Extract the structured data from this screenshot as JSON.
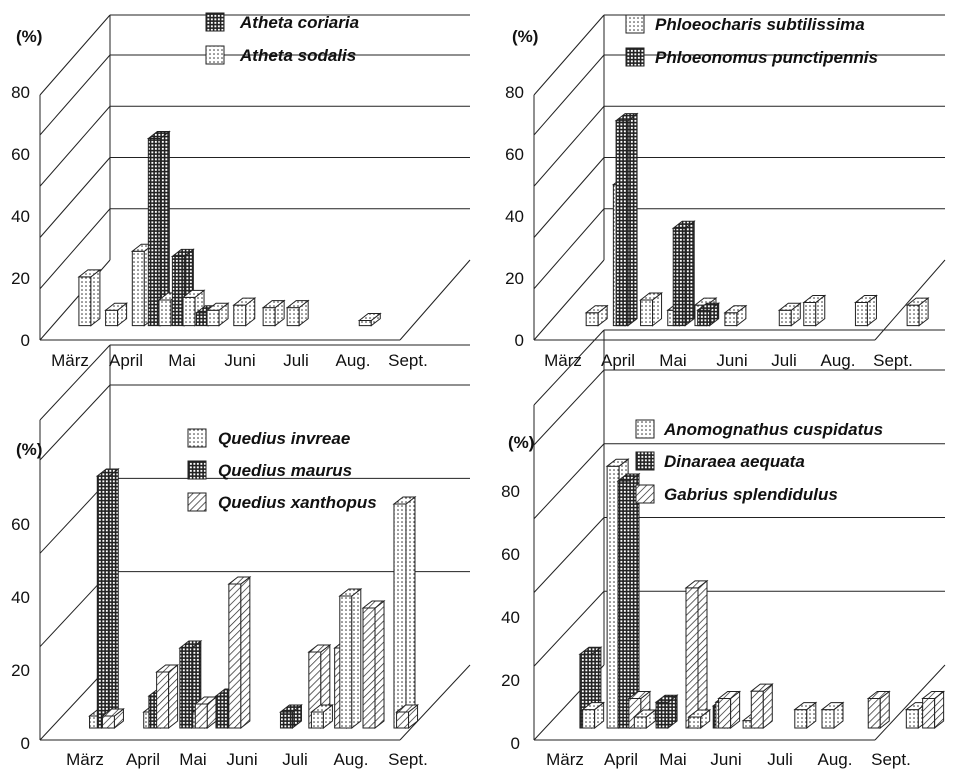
{
  "chart_data": [
    {
      "type": "bar",
      "ylabel": "(%)",
      "ylim": [
        0,
        80
      ],
      "yticks": [
        "0",
        "20",
        "40",
        "60",
        "80"
      ],
      "month_labels": [
        "März",
        "April",
        "Mai",
        "Juni",
        "Juli",
        "Aug.",
        "Sept."
      ],
      "series": [
        {
          "name": "Atheta coriaria",
          "pattern": "grid",
          "points": [
            {
              "x": 5.9,
              "y": 73
            },
            {
              "x": 6.8,
              "y": 27
            },
            {
              "x": 7.7,
              "y": 5
            }
          ]
        },
        {
          "name": "Atheta sodalis",
          "pattern": "dots",
          "points": [
            {
              "x": 3.3,
              "y": 19
            },
            {
              "x": 4.3,
              "y": 6
            },
            {
              "x": 5.3,
              "y": 29
            },
            {
              "x": 6.3,
              "y": 10
            },
            {
              "x": 7.2,
              "y": 11
            },
            {
              "x": 8.1,
              "y": 6
            },
            {
              "x": 9.1,
              "y": 8
            },
            {
              "x": 10.2,
              "y": 7
            },
            {
              "x": 11.1,
              "y": 7
            },
            {
              "x": 13.8,
              "y": 2
            }
          ]
        }
      ]
    },
    {
      "type": "bar",
      "ylabel": "(%)",
      "ylim": [
        0,
        80
      ],
      "yticks": [
        "0",
        "20",
        "40",
        "60",
        "80"
      ],
      "month_labels": [
        "März",
        "April",
        "Mai",
        "Juni",
        "Juli",
        "Aug.",
        "Sept."
      ],
      "series": [
        {
          "name": "Phloeocharis subtilissima",
          "pattern": "dots",
          "points": [
            {
              "x": 3.8,
              "y": 5
            },
            {
              "x": 4.8,
              "y": 55
            },
            {
              "x": 5.8,
              "y": 10
            },
            {
              "x": 6.8,
              "y": 6
            },
            {
              "x": 7.8,
              "y": 8
            },
            {
              "x": 8.9,
              "y": 5
            },
            {
              "x": 10.9,
              "y": 6
            },
            {
              "x": 11.8,
              "y": 9
            },
            {
              "x": 13.7,
              "y": 9
            },
            {
              "x": 15.6,
              "y": 8
            }
          ]
        },
        {
          "name": "Phloeonomus punctipennis",
          "pattern": "grid",
          "points": [
            {
              "x": 4.9,
              "y": 80
            },
            {
              "x": 7.0,
              "y": 38
            },
            {
              "x": 7.9,
              "y": 6
            }
          ]
        }
      ]
    },
    {
      "type": "bar",
      "ylabel": "(%)",
      "ylim": [
        0,
        70
      ],
      "yticks": [
        "0",
        "20",
        "40",
        "60"
      ],
      "month_labels": [
        "März",
        "April",
        "Mai",
        "Juni",
        "Juli",
        "Aug.",
        "Sept."
      ],
      "series": [
        {
          "name": "Quedius invreae",
          "pattern": "dots",
          "points": [
            {
              "x": 3.8,
              "y": 3
            },
            {
              "x": 5.9,
              "y": 4
            },
            {
              "x": 7.8,
              "y": 4
            },
            {
              "x": 12.4,
              "y": 4
            },
            {
              "x": 13.5,
              "y": 33
            },
            {
              "x": 15.6,
              "y": 56
            }
          ]
        },
        {
          "name": "Quedius maurus",
          "pattern": "grid",
          "points": [
            {
              "x": 4.1,
              "y": 63
            },
            {
              "x": 6.1,
              "y": 8
            },
            {
              "x": 7.3,
              "y": 20
            },
            {
              "x": 8.7,
              "y": 8
            },
            {
              "x": 11.2,
              "y": 4
            }
          ]
        },
        {
          "name": "Quedius xanthopus",
          "pattern": "hatch",
          "points": [
            {
              "x": 4.3,
              "y": 3
            },
            {
              "x": 6.4,
              "y": 14
            },
            {
              "x": 7.9,
              "y": 6
            },
            {
              "x": 9.2,
              "y": 36
            },
            {
              "x": 12.3,
              "y": 19
            },
            {
              "x": 13.3,
              "y": 20
            },
            {
              "x": 14.4,
              "y": 30
            },
            {
              "x": 15.7,
              "y": 4
            }
          ]
        }
      ]
    },
    {
      "type": "bar",
      "ylabel": "(%)",
      "ylim": [
        0,
        80
      ],
      "yticks": [
        "0",
        "20",
        "40",
        "60",
        "80"
      ],
      "month_labels": [
        "März",
        "April",
        "Mai",
        "Juni",
        "Juli",
        "Aug.",
        "Sept."
      ],
      "series": [
        {
          "name": "Anomognathus cuspidatus",
          "pattern": "dots",
          "points": [
            {
              "x": 3.7,
              "y": 5
            },
            {
              "x": 4.6,
              "y": 71
            },
            {
              "x": 5.6,
              "y": 3
            },
            {
              "x": 7.6,
              "y": 3
            },
            {
              "x": 8.6,
              "y": 7
            },
            {
              "x": 9.6,
              "y": 2
            },
            {
              "x": 11.5,
              "y": 5
            },
            {
              "x": 12.5,
              "y": 5
            },
            {
              "x": 15.6,
              "y": 5
            }
          ]
        },
        {
          "name": "Dinaraea aequata",
          "pattern": "grid",
          "points": [
            {
              "x": 3.6,
              "y": 20
            },
            {
              "x": 5.0,
              "y": 67
            },
            {
              "x": 6.4,
              "y": 7
            },
            {
              "x": 8.5,
              "y": 6
            }
          ]
        },
        {
          "name": "Gabrius splendidulus",
          "pattern": "hatch",
          "points": [
            {
              "x": 5.4,
              "y": 8
            },
            {
              "x": 7.5,
              "y": 38
            },
            {
              "x": 8.7,
              "y": 8
            },
            {
              "x": 9.9,
              "y": 10
            },
            {
              "x": 14.2,
              "y": 8
            },
            {
              "x": 16.2,
              "y": 8
            }
          ]
        }
      ]
    }
  ]
}
